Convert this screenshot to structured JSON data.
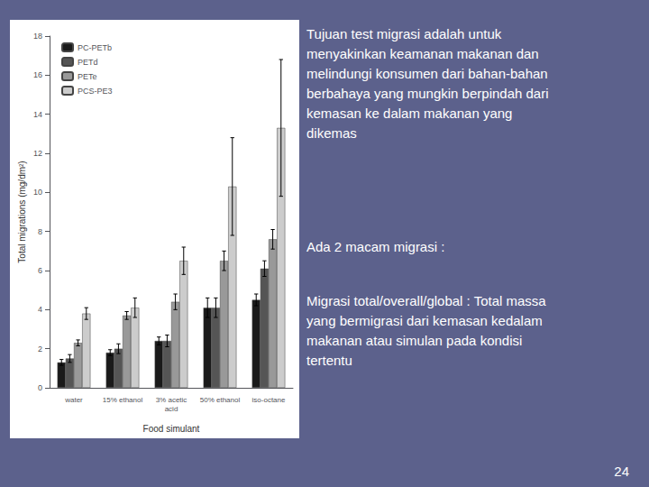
{
  "chart_data": {
    "type": "bar",
    "xlabel": "Food simulant",
    "ylabel": "Total migrations (mg/dm²)",
    "categories": [
      "water",
      "15% ethanol",
      "3% acetic\nacid",
      "50% ethanol",
      "iso-octane"
    ],
    "series": [
      {
        "name": "PC-PETb",
        "color": "#1a1a1a",
        "values": [
          1.3,
          1.8,
          2.4,
          4.1,
          4.5
        ],
        "errors": [
          0.15,
          0.15,
          0.2,
          0.5,
          0.3
        ]
      },
      {
        "name": "PETd",
        "color": "#555555",
        "values": [
          1.5,
          2.0,
          2.4,
          4.1,
          6.1
        ],
        "errors": [
          0.2,
          0.25,
          0.3,
          0.5,
          0.4
        ]
      },
      {
        "name": "PETe",
        "color": "#999999",
        "values": [
          2.3,
          3.7,
          4.4,
          6.5,
          7.6
        ],
        "errors": [
          0.15,
          0.2,
          0.4,
          0.5,
          0.5
        ]
      },
      {
        "name": "PCS-PE3",
        "color": "#cccccc",
        "values": [
          3.8,
          4.1,
          6.5,
          10.3,
          13.3
        ],
        "errors": [
          0.3,
          0.5,
          0.7,
          2.5,
          3.5
        ]
      }
    ],
    "ylim": [
      0,
      18
    ],
    "yticks": [
      0,
      2,
      4,
      6,
      8,
      10,
      12,
      14,
      16,
      18
    ],
    "grid": false,
    "legend": "upper left",
    "annotations": [
      "Tujuan test migrasi adalah untuk\nmenyakinkan keamanan makanan dan\nmelindungi konsumen dari bahan-bahan\nberbahaya yang mungkin berpindah dari\nkemasan ke dalam makanan yang\ndikemas",
      "Ada 2 macam migrasi :",
      "Migrasi total/overall/global : Total massa\nyang bermigrasi dari kemasan kedalam\nmakanan atau simulan pada kondisi\ntertentu",
      "24"
    ]
  }
}
